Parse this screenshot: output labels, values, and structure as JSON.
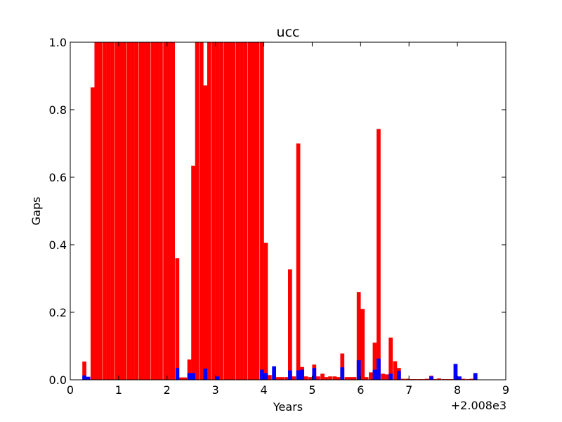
{
  "chart_data": {
    "type": "bar",
    "title": "ucc",
    "xlabel": "Years",
    "ylabel": "Gaps",
    "xlim": [
      0,
      9
    ],
    "ylim": [
      0,
      1.0
    ],
    "x_offset_label": "+2.008e3",
    "x_ticks": [
      "0",
      "1",
      "2",
      "3",
      "4",
      "5",
      "6",
      "7",
      "8",
      "9"
    ],
    "y_ticks": [
      "0.0",
      "0.2",
      "0.4",
      "0.6",
      "0.8",
      "1.0"
    ],
    "grid": false,
    "bar_width": 0.083,
    "series": [
      {
        "color": "#ff0000",
        "points": [
          [
            0.25,
            0.054
          ],
          [
            0.42,
            0.866
          ],
          [
            0.5,
            1.0
          ],
          [
            0.58,
            1.0
          ],
          [
            0.67,
            1.0
          ],
          [
            0.75,
            1.0
          ],
          [
            0.83,
            1.0
          ],
          [
            0.92,
            1.0
          ],
          [
            1.0,
            1.0
          ],
          [
            1.08,
            1.0
          ],
          [
            1.17,
            1.0
          ],
          [
            1.25,
            1.0
          ],
          [
            1.33,
            1.0
          ],
          [
            1.42,
            1.0
          ],
          [
            1.5,
            1.0
          ],
          [
            1.58,
            1.0
          ],
          [
            1.67,
            1.0
          ],
          [
            1.75,
            1.0
          ],
          [
            1.83,
            1.0
          ],
          [
            1.92,
            1.0
          ],
          [
            2.0,
            1.0
          ],
          [
            2.08,
            1.0
          ],
          [
            2.17,
            0.36
          ],
          [
            2.25,
            0.007
          ],
          [
            2.33,
            0.007
          ],
          [
            2.42,
            0.06
          ],
          [
            2.5,
            0.634
          ],
          [
            2.58,
            1.0
          ],
          [
            2.67,
            1.0
          ],
          [
            2.75,
            0.872
          ],
          [
            2.83,
            1.0
          ],
          [
            2.92,
            1.0
          ],
          [
            3.0,
            1.0
          ],
          [
            3.08,
            1.0
          ],
          [
            3.17,
            1.0
          ],
          [
            3.25,
            1.0
          ],
          [
            3.33,
            1.0
          ],
          [
            3.42,
            1.0
          ],
          [
            3.5,
            1.0
          ],
          [
            3.58,
            1.0
          ],
          [
            3.67,
            1.0
          ],
          [
            3.75,
            1.0
          ],
          [
            3.83,
            1.0
          ],
          [
            3.92,
            1.0
          ],
          [
            4.0,
            0.406
          ],
          [
            4.08,
            0.014
          ],
          [
            4.17,
            0.02
          ],
          [
            4.25,
            0.008
          ],
          [
            4.33,
            0.008
          ],
          [
            4.42,
            0.008
          ],
          [
            4.5,
            0.327
          ],
          [
            4.58,
            0.01
          ],
          [
            4.67,
            0.7
          ],
          [
            4.75,
            0.038
          ],
          [
            4.83,
            0.01
          ],
          [
            4.92,
            0.008
          ],
          [
            5.0,
            0.045
          ],
          [
            5.08,
            0.01
          ],
          [
            5.17,
            0.018
          ],
          [
            5.25,
            0.008
          ],
          [
            5.33,
            0.01
          ],
          [
            5.42,
            0.01
          ],
          [
            5.5,
            0.008
          ],
          [
            5.58,
            0.078
          ],
          [
            5.67,
            0.008
          ],
          [
            5.75,
            0.008
          ],
          [
            5.83,
            0.008
          ],
          [
            5.92,
            0.26
          ],
          [
            6.0,
            0.21
          ],
          [
            6.08,
            0.008
          ],
          [
            6.17,
            0.022
          ],
          [
            6.25,
            0.11
          ],
          [
            6.33,
            0.743
          ],
          [
            6.42,
            0.018
          ],
          [
            6.5,
            0.016
          ],
          [
            6.58,
            0.125
          ],
          [
            6.67,
            0.055
          ],
          [
            6.75,
            0.035
          ],
          [
            6.83,
            0.003
          ],
          [
            6.92,
            0.003
          ],
          [
            7.0,
            0.002
          ],
          [
            7.08,
            0.002
          ],
          [
            7.17,
            0.002
          ],
          [
            7.25,
            0.002
          ],
          [
            7.33,
            0.003
          ],
          [
            7.42,
            0.012
          ],
          [
            7.5,
            0.002
          ],
          [
            7.58,
            0.004
          ],
          [
            7.67,
            0.002
          ],
          [
            7.75,
            0.002
          ],
          [
            7.83,
            0.002
          ],
          [
            7.92,
            0.012
          ],
          [
            8.0,
            0.006
          ],
          [
            8.08,
            0.003
          ],
          [
            8.17,
            0.002
          ],
          [
            8.25,
            0.003
          ],
          [
            8.33,
            0.018
          ]
        ]
      },
      {
        "color": "#0000ff",
        "points": [
          [
            0.25,
            0.013
          ],
          [
            0.33,
            0.009
          ],
          [
            2.17,
            0.035
          ],
          [
            2.42,
            0.02
          ],
          [
            2.5,
            0.02
          ],
          [
            2.75,
            0.033
          ],
          [
            3.0,
            0.01
          ],
          [
            3.92,
            0.03
          ],
          [
            4.0,
            0.02
          ],
          [
            4.17,
            0.04
          ],
          [
            4.5,
            0.028
          ],
          [
            4.67,
            0.028
          ],
          [
            4.75,
            0.03
          ],
          [
            5.0,
            0.035
          ],
          [
            5.58,
            0.037
          ],
          [
            5.92,
            0.058
          ],
          [
            6.25,
            0.03
          ],
          [
            6.33,
            0.063
          ],
          [
            6.58,
            0.018
          ],
          [
            6.75,
            0.026
          ],
          [
            7.42,
            0.01
          ],
          [
            7.92,
            0.047
          ],
          [
            8.0,
            0.01
          ],
          [
            8.33,
            0.02
          ]
        ]
      }
    ]
  }
}
